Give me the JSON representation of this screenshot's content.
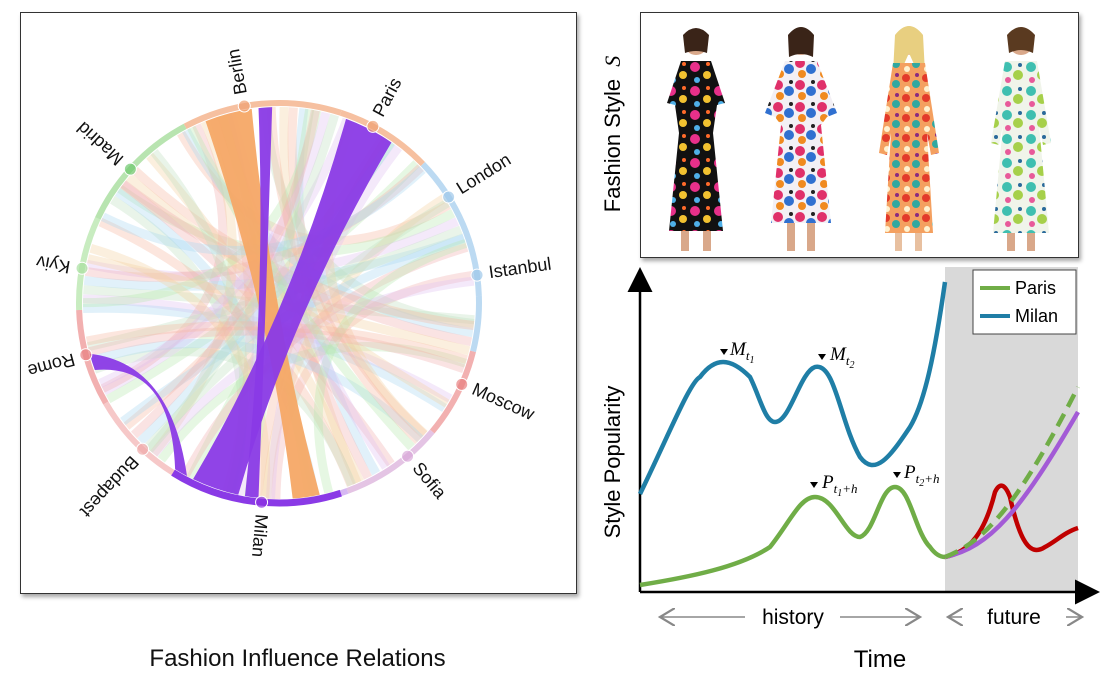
{
  "left_caption": "Fashion Influence Relations",
  "cities": [
    {
      "name": "Berlin",
      "angle": -100,
      "color": "#f0a070"
    },
    {
      "name": "Paris",
      "angle": -62,
      "color": "#f0a070"
    },
    {
      "name": "London",
      "angle": -32,
      "color": "#9ec8ea"
    },
    {
      "name": "Istanbul",
      "angle": -8,
      "color": "#9ec8ea"
    },
    {
      "name": "Moscow",
      "angle": 24,
      "color": "#e88080"
    },
    {
      "name": "Sofia",
      "angle": 50,
      "color": "#d8a8d8"
    },
    {
      "name": "Milan",
      "angle": 95,
      "color": "#8a30e0"
    },
    {
      "name": "Budapest",
      "angle": 133,
      "color": "#f0a8a8"
    },
    {
      "name": "Rome",
      "angle": 165,
      "color": "#e88080"
    },
    {
      "name": "Kyiv",
      "angle": 190,
      "color": "#a8e0a0"
    },
    {
      "name": "Madrid",
      "angle": 222,
      "color": "#6cc86c"
    }
  ],
  "style_axis_label": "Fashion Style",
  "style_symbol": "S",
  "dresses": [
    "black-floral-dress",
    "pink-floral-wrap-dress",
    "orange-floral-wrap-dress",
    "teal-floral-wrap-dress"
  ],
  "pop": {
    "ylabel": "Style Popularity",
    "xlabel": "Time",
    "history": "history",
    "future": "future",
    "legend": [
      {
        "name": "Paris",
        "color": "#70ad47"
      },
      {
        "name": "Milan",
        "color": "#1f7ea6"
      }
    ],
    "annotations": {
      "m1_base": "M",
      "m1_sub": "t",
      "m1_subsub": "1",
      "m2_base": "M",
      "m2_sub": "t",
      "m2_subsub": "2",
      "p1_base": "P",
      "p1_sub": "t",
      "p1_subsub": "1",
      "p1_plus": "+h",
      "p2_base": "P",
      "p2_sub": "t",
      "p2_subsub": "2",
      "p2_plus": "+h"
    },
    "colors": {
      "paris": "#70ad47",
      "milan": "#1f7ea6",
      "red": "#c00000",
      "purple": "#a35bd6",
      "future_bg": "#d9d9d9"
    }
  }
}
